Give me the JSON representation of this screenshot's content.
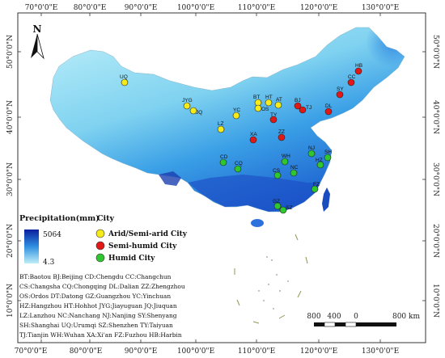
{
  "axes": {
    "top": [
      "70°0'0\"E",
      "80°0'0\"E",
      "90°0'0\"E",
      "100°0'0\"E",
      "110°0'0\"E",
      "120°0'0\"E",
      "130°0'0\"E"
    ],
    "bottom": [
      "70°0'0\"E",
      "80°0'0\"E",
      "90°0'0\"E",
      "100°0'0\"E",
      "110°0'0\"E",
      "120°0'0\"E",
      "130°0'0\"E"
    ],
    "left": [
      "50°0'0\"N",
      "40°0'0\"N",
      "30°0'0\"N",
      "20°0'0\"N",
      "10°0'0\"N"
    ],
    "right": [
      "50°0'0\"N",
      "40°0'0\"N",
      "30°0'0\"N",
      "20°0'0\"N",
      "10°0'0\"N"
    ]
  },
  "north": "N",
  "legend": {
    "precip_title": "Precipitation(mm)",
    "precip_max": "5064",
    "precip_min": "4.3",
    "city_title": "City",
    "categories": [
      {
        "label": "Arid/Semi-arid City",
        "color": "#f5ea1a"
      },
      {
        "label": "Semi-humid City",
        "color": "#e01818"
      },
      {
        "label": "Humid City",
        "color": "#2fc62f"
      }
    ]
  },
  "scale": {
    "labels": [
      "800",
      "400",
      "0",
      "800 km"
    ]
  },
  "cities": [
    {
      "code": "UQ",
      "type": "arid"
    },
    {
      "code": "JYG",
      "type": "arid"
    },
    {
      "code": "JQ",
      "type": "arid"
    },
    {
      "code": "BT",
      "type": "arid"
    },
    {
      "code": "HT",
      "type": "arid"
    },
    {
      "code": "OS",
      "type": "arid"
    },
    {
      "code": "AT",
      "type": "arid"
    },
    {
      "code": "YC",
      "type": "arid"
    },
    {
      "code": "LZ",
      "type": "arid"
    },
    {
      "code": "TY",
      "type": "semi"
    },
    {
      "code": "BJ",
      "type": "semi"
    },
    {
      "code": "TJ",
      "type": "semi"
    },
    {
      "code": "DL",
      "type": "semi"
    },
    {
      "code": "SY",
      "type": "semi"
    },
    {
      "code": "CC",
      "type": "semi"
    },
    {
      "code": "HB",
      "type": "semi"
    },
    {
      "code": "XA",
      "type": "semi"
    },
    {
      "code": "ZZ",
      "type": "semi"
    },
    {
      "code": "CD",
      "type": "humid"
    },
    {
      "code": "CQ",
      "type": "humid"
    },
    {
      "code": "WH",
      "type": "humid"
    },
    {
      "code": "CS",
      "type": "humid"
    },
    {
      "code": "NC",
      "type": "humid"
    },
    {
      "code": "NJ",
      "type": "humid"
    },
    {
      "code": "SH",
      "type": "humid"
    },
    {
      "code": "HZ",
      "type": "humid"
    },
    {
      "code": "FZ",
      "type": "humid"
    },
    {
      "code": "GZ",
      "type": "humid"
    },
    {
      "code": "SZ",
      "type": "humid"
    }
  ],
  "abbreviations": [
    "BT:Baotou   BJ:Beijing   CD:Chengdu   CC:Changchun",
    "CS:Changsha  CQ:Chongqing  DL:Dalian  ZZ:Zhengzhou",
    "OS:Ordos  DT:Datong   GZ:Guangzhou   YC:Yinchuan",
    "HZ:Hangzhou  HT:Hohhot  JYG:Jiayuguan  JQ:Jiuquan",
    "LZ:Lanzhou   NC:Nanchang  NJ:Nanjing   SY:Shenyang",
    "SH:Shanghai   UQ:Urumqi   SZ:Shenzhen   TY:Taiyuan",
    "TJ:Tianjin  WH:Wuhan   XA:Xi'an  FZ:Fuzhou  HB:Harbin"
  ]
}
